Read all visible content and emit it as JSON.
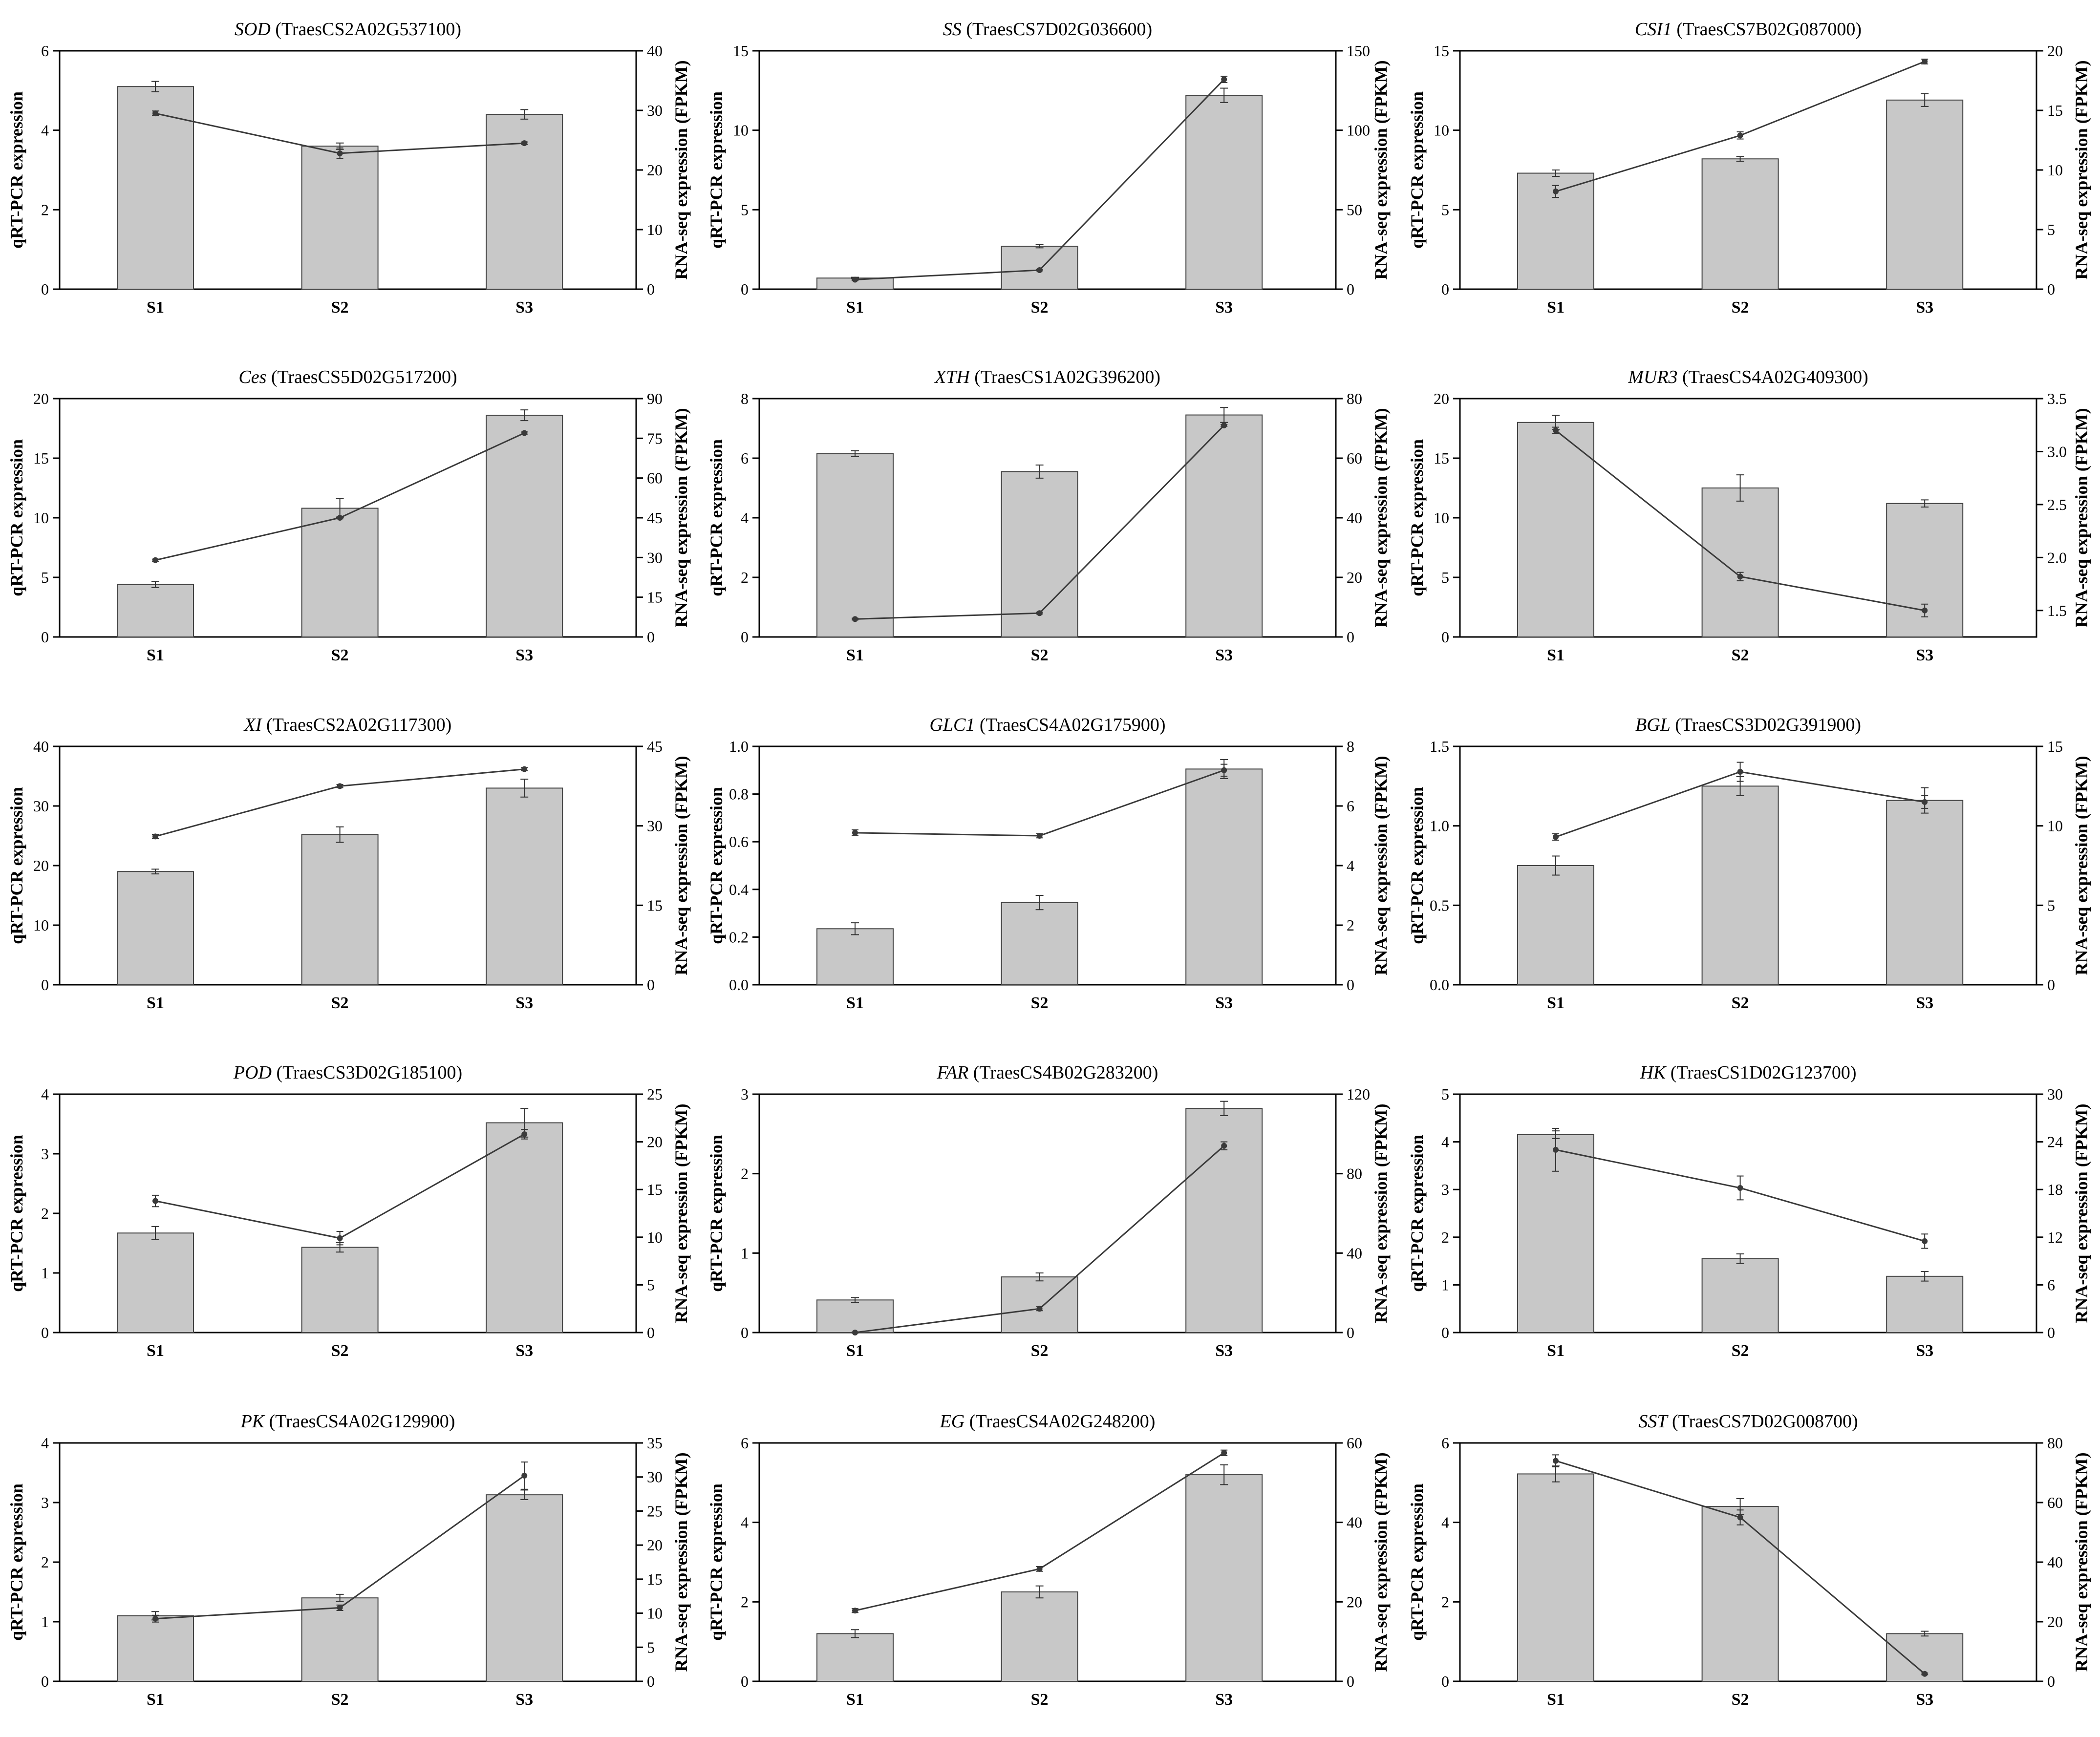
{
  "shared": {
    "categories": [
      "S1",
      "S2",
      "S3"
    ],
    "ylabel_left": "qRT-PCR expression",
    "ylabel_right": "RNA-seq expression (FPKM)"
  },
  "chart_data": [
    {
      "type": "bar",
      "gene": "SOD",
      "gene_id": "(TraesCS2A02G537100)",
      "categories": [
        "S1",
        "S2",
        "S3"
      ],
      "ylim": [
        0,
        6
      ],
      "yticks": [
        0,
        2,
        4,
        6
      ],
      "y2lim": [
        0,
        40
      ],
      "y2ticks": [
        0,
        10,
        20,
        30,
        40
      ],
      "series": [
        {
          "axis": "left",
          "kind": "bar",
          "values": [
            5.1,
            3.6,
            4.4
          ],
          "err": [
            0.13,
            0.08,
            0.12
          ]
        },
        {
          "axis": "right",
          "kind": "line",
          "values": [
            29.5,
            22.8,
            24.5
          ],
          "err": [
            0.4,
            0.9,
            0.2
          ]
        }
      ]
    },
    {
      "type": "bar",
      "gene": "SS",
      "gene_id": "(TraesCS7D02G036600)",
      "categories": [
        "S1",
        "S2",
        "S3"
      ],
      "ylim": [
        0,
        15
      ],
      "yticks": [
        0,
        5,
        10,
        15
      ],
      "y2lim": [
        0,
        150
      ],
      "y2ticks": [
        0,
        50,
        100,
        150
      ],
      "series": [
        {
          "axis": "left",
          "kind": "bar",
          "values": [
            0.7,
            2.7,
            12.2
          ],
          "err": [
            0.05,
            0.1,
            0.45
          ]
        },
        {
          "axis": "right",
          "kind": "line",
          "values": [
            6,
            12,
            132
          ],
          "err": [
            0.5,
            0.5,
            2
          ]
        }
      ]
    },
    {
      "type": "bar",
      "gene": "CSI1",
      "gene_id": "(TraesCS7B02G087000)",
      "categories": [
        "S1",
        "S2",
        "S3"
      ],
      "ylim": [
        0,
        15
      ],
      "yticks": [
        0,
        5,
        10,
        15
      ],
      "y2lim": [
        0,
        20
      ],
      "y2ticks": [
        0,
        5,
        10,
        15,
        20
      ],
      "series": [
        {
          "axis": "left",
          "kind": "bar",
          "values": [
            7.3,
            8.2,
            11.9
          ],
          "err": [
            0.2,
            0.15,
            0.4
          ]
        },
        {
          "axis": "right",
          "kind": "line",
          "values": [
            8.2,
            12.9,
            19.1
          ],
          "err": [
            0.5,
            0.3,
            0.2
          ]
        }
      ]
    },
    {
      "type": "bar",
      "gene": "Ces",
      "gene_id": "(TraesCS5D02G517200)",
      "categories": [
        "S1",
        "S2",
        "S3"
      ],
      "ylim": [
        0,
        20
      ],
      "yticks": [
        0,
        5,
        10,
        15,
        20
      ],
      "y2lim": [
        0,
        90
      ],
      "y2ticks": [
        0,
        15,
        30,
        45,
        60,
        75,
        90
      ],
      "series": [
        {
          "axis": "left",
          "kind": "bar",
          "values": [
            4.4,
            10.8,
            18.6
          ],
          "err": [
            0.25,
            0.8,
            0.45
          ]
        },
        {
          "axis": "right",
          "kind": "line",
          "values": [
            29,
            45,
            77
          ],
          "err": [
            0.4,
            0.4,
            0.4
          ]
        }
      ]
    },
    {
      "type": "bar",
      "gene": "XTH",
      "gene_id": "(TraesCS1A02G396200)",
      "categories": [
        "S1",
        "S2",
        "S3"
      ],
      "ylim": [
        0,
        8
      ],
      "yticks": [
        0,
        2,
        4,
        6,
        8
      ],
      "y2lim": [
        0,
        80
      ],
      "y2ticks": [
        0,
        20,
        40,
        60,
        80
      ],
      "series": [
        {
          "axis": "left",
          "kind": "bar",
          "values": [
            6.15,
            5.55,
            7.45
          ],
          "err": [
            0.1,
            0.22,
            0.25
          ]
        },
        {
          "axis": "right",
          "kind": "line",
          "values": [
            6,
            8,
            71
          ],
          "err": [
            0.3,
            0.3,
            0.3
          ]
        }
      ]
    },
    {
      "type": "bar",
      "gene": "MUR3",
      "gene_id": "(TraesCS4A02G409300)",
      "categories": [
        "S1",
        "S2",
        "S3"
      ],
      "ylim": [
        0,
        20
      ],
      "yticks": [
        0,
        5,
        10,
        15,
        20
      ],
      "y2lim": [
        1.25,
        3.5
      ],
      "y2ticks": [
        1.5,
        2.0,
        2.5,
        3.0,
        3.5
      ],
      "y2ticklabels": [
        "1.5",
        "2.0",
        "2.5",
        "3.0",
        "3.5"
      ],
      "series": [
        {
          "axis": "left",
          "kind": "bar",
          "values": [
            18,
            12.5,
            11.2
          ],
          "err": [
            0.6,
            1.1,
            0.3
          ]
        },
        {
          "axis": "right",
          "kind": "line",
          "values": [
            3.2,
            1.82,
            1.5
          ],
          "err": [
            0.03,
            0.04,
            0.06
          ]
        }
      ]
    },
    {
      "type": "bar",
      "gene": "XI",
      "gene_id": "(TraesCS2A02G117300)",
      "categories": [
        "S1",
        "S2",
        "S3"
      ],
      "ylim": [
        0,
        40
      ],
      "yticks": [
        0,
        10,
        20,
        30,
        40
      ],
      "y2lim": [
        0,
        45
      ],
      "y2ticks": [
        0,
        15,
        30,
        45
      ],
      "series": [
        {
          "axis": "left",
          "kind": "bar",
          "values": [
            19,
            25.2,
            33
          ],
          "err": [
            0.4,
            1.3,
            1.5
          ]
        },
        {
          "axis": "right",
          "kind": "line",
          "values": [
            28,
            37.5,
            40.7
          ],
          "err": [
            0.4,
            0.3,
            0.3
          ]
        }
      ]
    },
    {
      "type": "bar",
      "gene": "GLC1",
      "gene_id": "(TraesCS4A02G175900)",
      "categories": [
        "S1",
        "S2",
        "S3"
      ],
      "ylim": [
        0,
        1.0
      ],
      "yticks": [
        0,
        0.2,
        0.4,
        0.6,
        0.8,
        1.0
      ],
      "yticklabels": [
        "0.0",
        "0.2",
        "0.4",
        "0.6",
        "0.8",
        "1.0"
      ],
      "y2lim": [
        0,
        8
      ],
      "y2ticks": [
        0,
        2,
        4,
        6,
        8
      ],
      "series": [
        {
          "axis": "left",
          "kind": "bar",
          "values": [
            0.235,
            0.345,
            0.905
          ],
          "err": [
            0.025,
            0.03,
            0.04
          ]
        },
        {
          "axis": "right",
          "kind": "line",
          "values": [
            5.1,
            5.0,
            7.2
          ],
          "err": [
            0.1,
            0.07,
            0.2
          ]
        }
      ]
    },
    {
      "type": "bar",
      "gene": "BGL",
      "gene_id": "(TraesCS3D02G391900)",
      "categories": [
        "S1",
        "S2",
        "S3"
      ],
      "ylim": [
        0,
        1.5
      ],
      "yticks": [
        0,
        0.5,
        1.0,
        1.5
      ],
      "yticklabels": [
        "0.0",
        "0.5",
        "1.0",
        "1.5"
      ],
      "y2lim": [
        0,
        15
      ],
      "y2ticks": [
        0,
        5,
        10,
        15
      ],
      "series": [
        {
          "axis": "left",
          "kind": "bar",
          "values": [
            0.75,
            1.25,
            1.16
          ],
          "err": [
            0.06,
            0.06,
            0.08
          ]
        },
        {
          "axis": "right",
          "kind": "line",
          "values": [
            9.3,
            13.4,
            11.5
          ],
          "err": [
            0.2,
            0.6,
            0.4
          ]
        }
      ]
    },
    {
      "type": "bar",
      "gene": "POD",
      "gene_id": "(TraesCS3D02G185100)",
      "categories": [
        "S1",
        "S2",
        "S3"
      ],
      "ylim": [
        0,
        4
      ],
      "yticks": [
        0,
        1,
        2,
        3,
        4
      ],
      "y2lim": [
        0,
        25
      ],
      "y2ticks": [
        0,
        5,
        10,
        15,
        20,
        25
      ],
      "series": [
        {
          "axis": "left",
          "kind": "bar",
          "values": [
            1.67,
            1.43,
            3.52
          ],
          "err": [
            0.11,
            0.08,
            0.24
          ]
        },
        {
          "axis": "right",
          "kind": "line",
          "values": [
            13.8,
            9.9,
            20.8
          ],
          "err": [
            0.6,
            0.7,
            0.5
          ]
        }
      ]
    },
    {
      "type": "bar",
      "gene": "FAR",
      "gene_id": "(TraesCS4B02G283200)",
      "categories": [
        "S1",
        "S2",
        "S3"
      ],
      "ylim": [
        0,
        3
      ],
      "yticks": [
        0,
        1,
        2,
        3
      ],
      "y2lim": [
        0,
        120
      ],
      "y2ticks": [
        0,
        40,
        80,
        120
      ],
      "series": [
        {
          "axis": "left",
          "kind": "bar",
          "values": [
            0.41,
            0.7,
            2.82
          ],
          "err": [
            0.03,
            0.05,
            0.09
          ]
        },
        {
          "axis": "right",
          "kind": "line",
          "values": [
            0,
            12,
            94
          ],
          "err": [
            0.3,
            1,
            2
          ]
        }
      ]
    },
    {
      "type": "bar",
      "gene": "HK",
      "gene_id": "(TraesCS1D02G123700)",
      "categories": [
        "S1",
        "S2",
        "S3"
      ],
      "ylim": [
        0,
        5
      ],
      "yticks": [
        0,
        1,
        2,
        3,
        4,
        5
      ],
      "y2lim": [
        0,
        30
      ],
      "y2ticks": [
        0,
        6,
        12,
        18,
        24,
        30
      ],
      "series": [
        {
          "axis": "left",
          "kind": "bar",
          "values": [
            4.15,
            1.55,
            1.18
          ],
          "err": [
            0.08,
            0.1,
            0.1
          ]
        },
        {
          "axis": "right",
          "kind": "line",
          "values": [
            23,
            18.2,
            11.5
          ],
          "err": [
            2.7,
            1.5,
            0.9
          ]
        }
      ]
    },
    {
      "type": "bar",
      "gene": "PK",
      "gene_id": "(TraesCS4A02G129900)",
      "categories": [
        "S1",
        "S2",
        "S3"
      ],
      "ylim": [
        0,
        4
      ],
      "yticks": [
        0,
        1,
        2,
        3,
        4
      ],
      "y2lim": [
        0,
        35
      ],
      "y2ticks": [
        0,
        5,
        10,
        15,
        20,
        25,
        30,
        35
      ],
      "series": [
        {
          "axis": "left",
          "kind": "bar",
          "values": [
            1.1,
            1.4,
            3.13
          ],
          "err": [
            0.07,
            0.06,
            0.08
          ]
        },
        {
          "axis": "right",
          "kind": "line",
          "values": [
            9.2,
            10.8,
            30.2
          ],
          "err": [
            0.5,
            0.4,
            2
          ]
        }
      ]
    },
    {
      "type": "bar",
      "gene": "EG",
      "gene_id": "(TraesCS4A02G248200)",
      "categories": [
        "S1",
        "S2",
        "S3"
      ],
      "ylim": [
        0,
        6
      ],
      "yticks": [
        0,
        2,
        4,
        6
      ],
      "y2lim": [
        0,
        60
      ],
      "y2ticks": [
        0,
        20,
        40,
        60
      ],
      "series": [
        {
          "axis": "left",
          "kind": "bar",
          "values": [
            1.2,
            2.25,
            5.2
          ],
          "err": [
            0.1,
            0.15,
            0.25
          ]
        },
        {
          "axis": "right",
          "kind": "line",
          "values": [
            17.8,
            28.3,
            57.5
          ],
          "err": [
            0.5,
            0.6,
            0.7
          ]
        }
      ]
    },
    {
      "type": "bar",
      "gene": "SST",
      "gene_id": "(TraesCS7D02G008700)",
      "categories": [
        "S1",
        "S2",
        "S3"
      ],
      "ylim": [
        0,
        6
      ],
      "yticks": [
        0,
        2,
        4,
        6
      ],
      "y2lim": [
        0,
        80
      ],
      "y2ticks": [
        0,
        20,
        40,
        60,
        80
      ],
      "series": [
        {
          "axis": "left",
          "kind": "bar",
          "values": [
            5.22,
            4.4,
            1.2
          ],
          "err": [
            0.2,
            0.2,
            0.06
          ]
        },
        {
          "axis": "right",
          "kind": "line",
          "values": [
            74,
            55,
            2.5
          ],
          "err": [
            2,
            2.5,
            0.3
          ]
        }
      ]
    }
  ]
}
